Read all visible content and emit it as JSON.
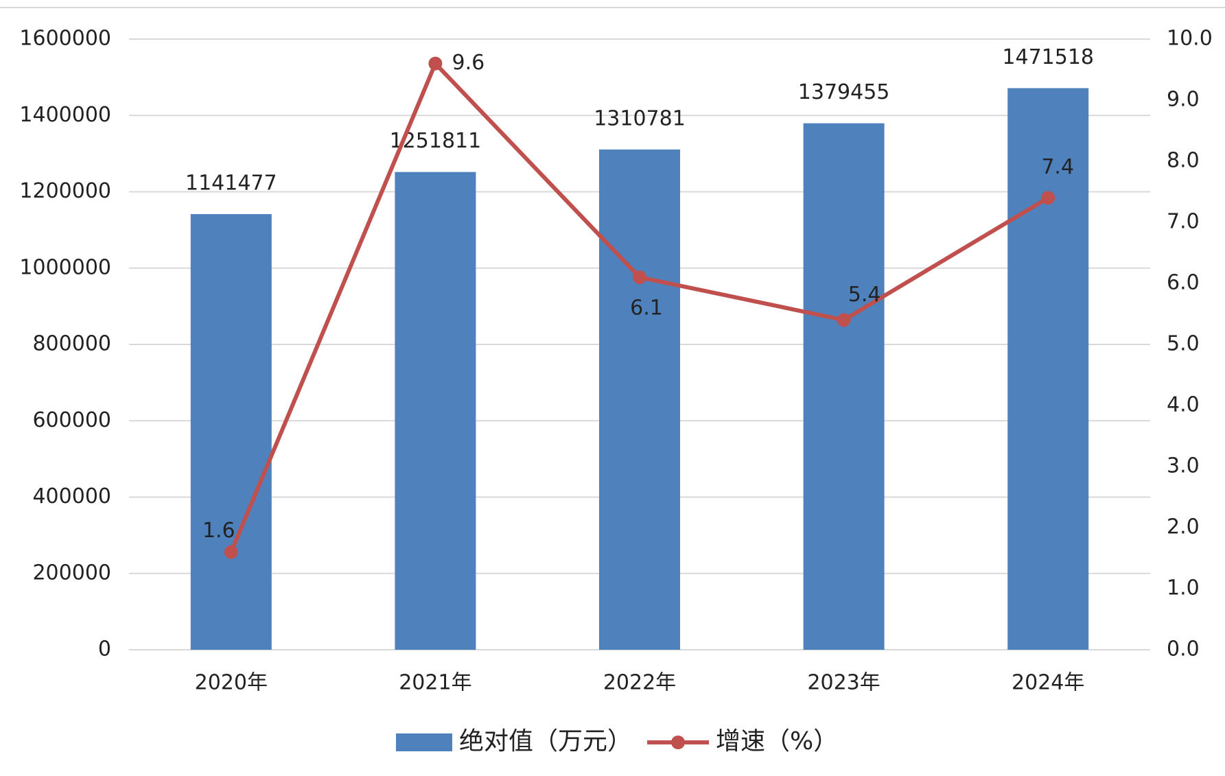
{
  "chart_data": {
    "type": "bar",
    "categories": [
      "2020年",
      "2021年",
      "2022年",
      "2023年",
      "2024年"
    ],
    "series": [
      {
        "name": "绝对值（万元）",
        "type": "bar",
        "color": "#4f81bd",
        "values": [
          1141477,
          1251811,
          1310781,
          1379455,
          1471518
        ]
      },
      {
        "name": "增速（%）",
        "type": "line",
        "axis": "y2",
        "color": "#c0504d",
        "values": [
          1.6,
          9.6,
          6.1,
          5.4,
          7.4
        ]
      }
    ],
    "ylim": [
      0,
      1600000
    ],
    "yticks": [
      0,
      200000,
      400000,
      600000,
      800000,
      1000000,
      1200000,
      1400000,
      1600000
    ],
    "y2lim": [
      0,
      10
    ],
    "y2ticks": [
      {
        "value": 0,
        "label": "0.0"
      },
      {
        "value": 1,
        "label": "1.0"
      },
      {
        "value": 2,
        "label": "2.0"
      },
      {
        "value": 3,
        "label": "3.0"
      },
      {
        "value": 4,
        "label": "4.0"
      },
      {
        "value": 5,
        "label": "5.0"
      },
      {
        "value": 6,
        "label": "6.0"
      },
      {
        "value": 7,
        "label": "7.0"
      },
      {
        "value": 8,
        "label": "8.0"
      },
      {
        "value": 9,
        "label": "9.0"
      },
      {
        "value": 10,
        "label": "10.0"
      }
    ],
    "grid": true,
    "legend": "bottom"
  }
}
